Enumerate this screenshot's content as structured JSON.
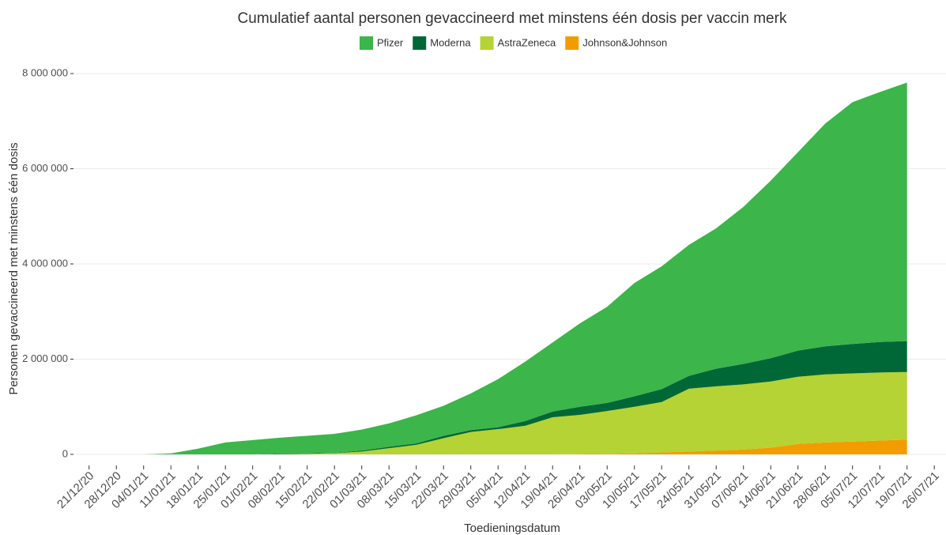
{
  "chart_data": {
    "type": "stacked_area",
    "title": "Cumulatief aantal personen gevaccineerd met minstens één dosis per vaccin merk",
    "xlabel": "Toedieningsdatum",
    "ylabel": "Personen gevaccineerd met minstens één dosis",
    "x": [
      "21/12/20",
      "28/12/20",
      "04/01/21",
      "11/01/21",
      "18/01/21",
      "25/01/21",
      "01/02/21",
      "08/02/21",
      "15/02/21",
      "22/02/21",
      "01/03/21",
      "08/03/21",
      "15/03/21",
      "22/03/21",
      "29/03/21",
      "05/04/21",
      "12/04/21",
      "19/04/21",
      "26/04/21",
      "03/05/21",
      "10/05/21",
      "17/05/21",
      "24/05/21",
      "31/05/21",
      "07/06/21",
      "14/06/21",
      "21/06/21",
      "28/06/21",
      "05/07/21",
      "12/07/21",
      "19/07/21"
    ],
    "xticks": [
      "21/12/20",
      "28/12/20",
      "04/01/21",
      "11/01/21",
      "18/01/21",
      "25/01/21",
      "01/02/21",
      "08/02/21",
      "15/02/21",
      "22/02/21",
      "01/03/21",
      "08/03/21",
      "15/03/21",
      "22/03/21",
      "29/03/21",
      "05/04/21",
      "12/04/21",
      "19/04/21",
      "26/04/21",
      "03/05/21",
      "10/05/21",
      "17/05/21",
      "24/05/21",
      "31/05/21",
      "07/06/21",
      "14/06/21",
      "21/06/21",
      "28/06/21",
      "05/07/21",
      "12/07/21",
      "19/07/21",
      "26/07/21"
    ],
    "xlim": [
      "17/12/20",
      "29/07/21"
    ],
    "ylim": [
      -200000,
      8300000
    ],
    "yticks": [
      0,
      {
        "value": 2000000,
        "label": "2 000 000"
      },
      {
        "value": 4000000,
        "label": "4 000 000"
      },
      {
        "value": 6000000,
        "label": "6 000 000"
      },
      {
        "value": 8000000,
        "label": "8 000 000"
      }
    ],
    "grid": true,
    "legend": "top",
    "series": [
      {
        "name": "Pfizer",
        "color": "#3cb54a",
        "values": [
          0,
          0,
          0,
          20000,
          120000,
          250000,
          300000,
          330000,
          370000,
          400000,
          440000,
          490000,
          590000,
          630000,
          770000,
          1010000,
          1250000,
          1450000,
          1750000,
          2020000,
          2380000,
          2580000,
          2750000,
          2950000,
          3300000,
          3730000,
          4170000,
          4680000,
          5080000,
          5250000,
          5430000
        ]
      },
      {
        "name": "Moderna",
        "color": "#006837",
        "values": [
          0,
          0,
          0,
          0,
          0,
          0,
          0,
          15000,
          10000,
          5000,
          20000,
          30000,
          30000,
          50000,
          40000,
          40000,
          100000,
          120000,
          170000,
          170000,
          220000,
          270000,
          270000,
          370000,
          430000,
          490000,
          550000,
          590000,
          620000,
          640000,
          650000
        ]
      },
      {
        "name": "AstraZeneca",
        "color": "#b5d334",
        "values": [
          0,
          0,
          0,
          0,
          0,
          0,
          0,
          5000,
          10000,
          25000,
          60000,
          130000,
          200000,
          340000,
          470000,
          530000,
          600000,
          780000,
          825000,
          900000,
          980000,
          1060000,
          1320000,
          1350000,
          1370000,
          1390000,
          1410000,
          1430000,
          1430000,
          1430000,
          1420000
        ]
      },
      {
        "name": "Johnson&Johnson",
        "color": "#f39c00",
        "values": [
          0,
          0,
          0,
          0,
          0,
          0,
          0,
          0,
          0,
          0,
          0,
          0,
          0,
          0,
          0,
          0,
          0,
          0,
          5000,
          10000,
          20000,
          40000,
          60000,
          80000,
          100000,
          140000,
          220000,
          250000,
          270000,
          290000,
          310000
        ]
      }
    ]
  }
}
